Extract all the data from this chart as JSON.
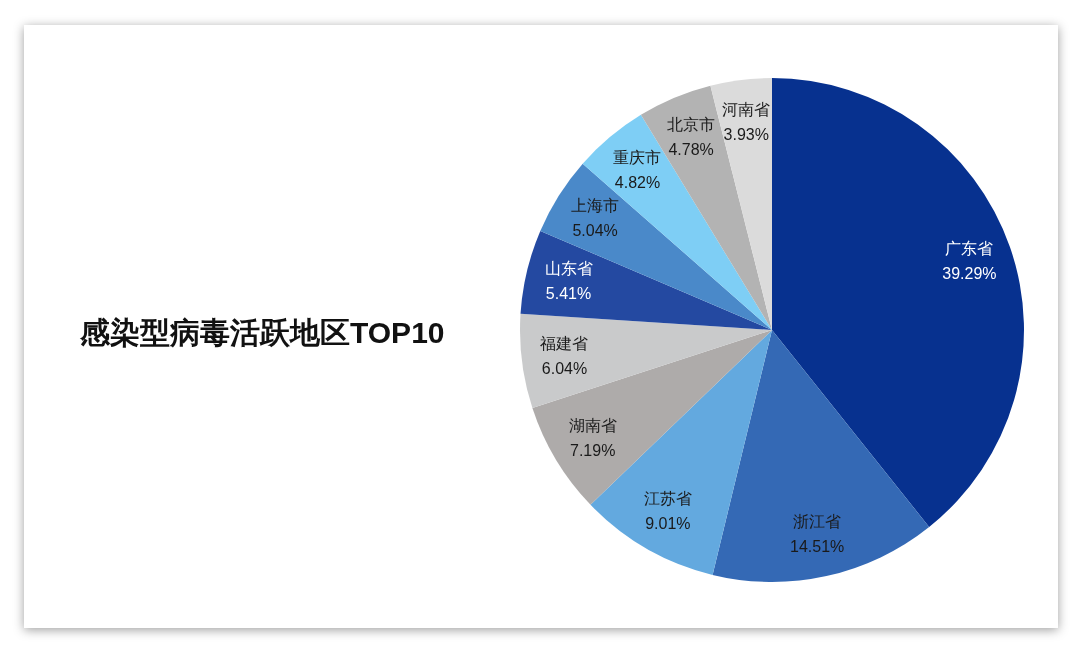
{
  "chart_data": {
    "type": "pie",
    "title": "感染型病毒活跃地区TOP10",
    "categories": [
      "广东省",
      "浙江省",
      "江苏省",
      "湖南省",
      "福建省",
      "山东省",
      "上海市",
      "重庆市",
      "北京市",
      "河南省"
    ],
    "values": [
      39.29,
      14.51,
      9.01,
      7.19,
      6.04,
      5.41,
      5.04,
      4.82,
      4.78,
      3.93
    ],
    "colors": [
      "#07318f",
      "#3469b5",
      "#63a9df",
      "#aeabaa",
      "#c9cacb",
      "#2449a1",
      "#4a89c9",
      "#7ecef5",
      "#b3b3b3",
      "#dbdbdb"
    ],
    "value_labels": [
      "39.29%",
      "14.51%",
      "9.01%",
      "7.19%",
      "6.04%",
      "5.41%",
      "5.04%",
      "4.82%",
      "4.78%",
      "3.93%"
    ]
  }
}
